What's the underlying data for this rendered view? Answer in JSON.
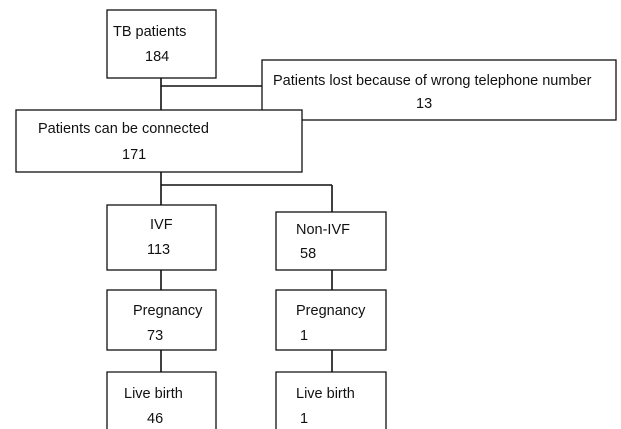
{
  "nodes": [
    {
      "label": "TB patients",
      "count": "184"
    },
    {
      "label": "Patients lost because of wrong telephone number",
      "count": "13"
    },
    {
      "label": "Patients can be connected",
      "count": "171"
    },
    {
      "label": "IVF",
      "count": "113"
    },
    {
      "label": "Non-IVF",
      "count": "58"
    },
    {
      "label": "Pregnancy",
      "count": "73"
    },
    {
      "label": "Pregnancy",
      "count": "1"
    },
    {
      "label": "Live birth",
      "count": "46"
    },
    {
      "label": "Live birth",
      "count": "1"
    }
  ]
}
